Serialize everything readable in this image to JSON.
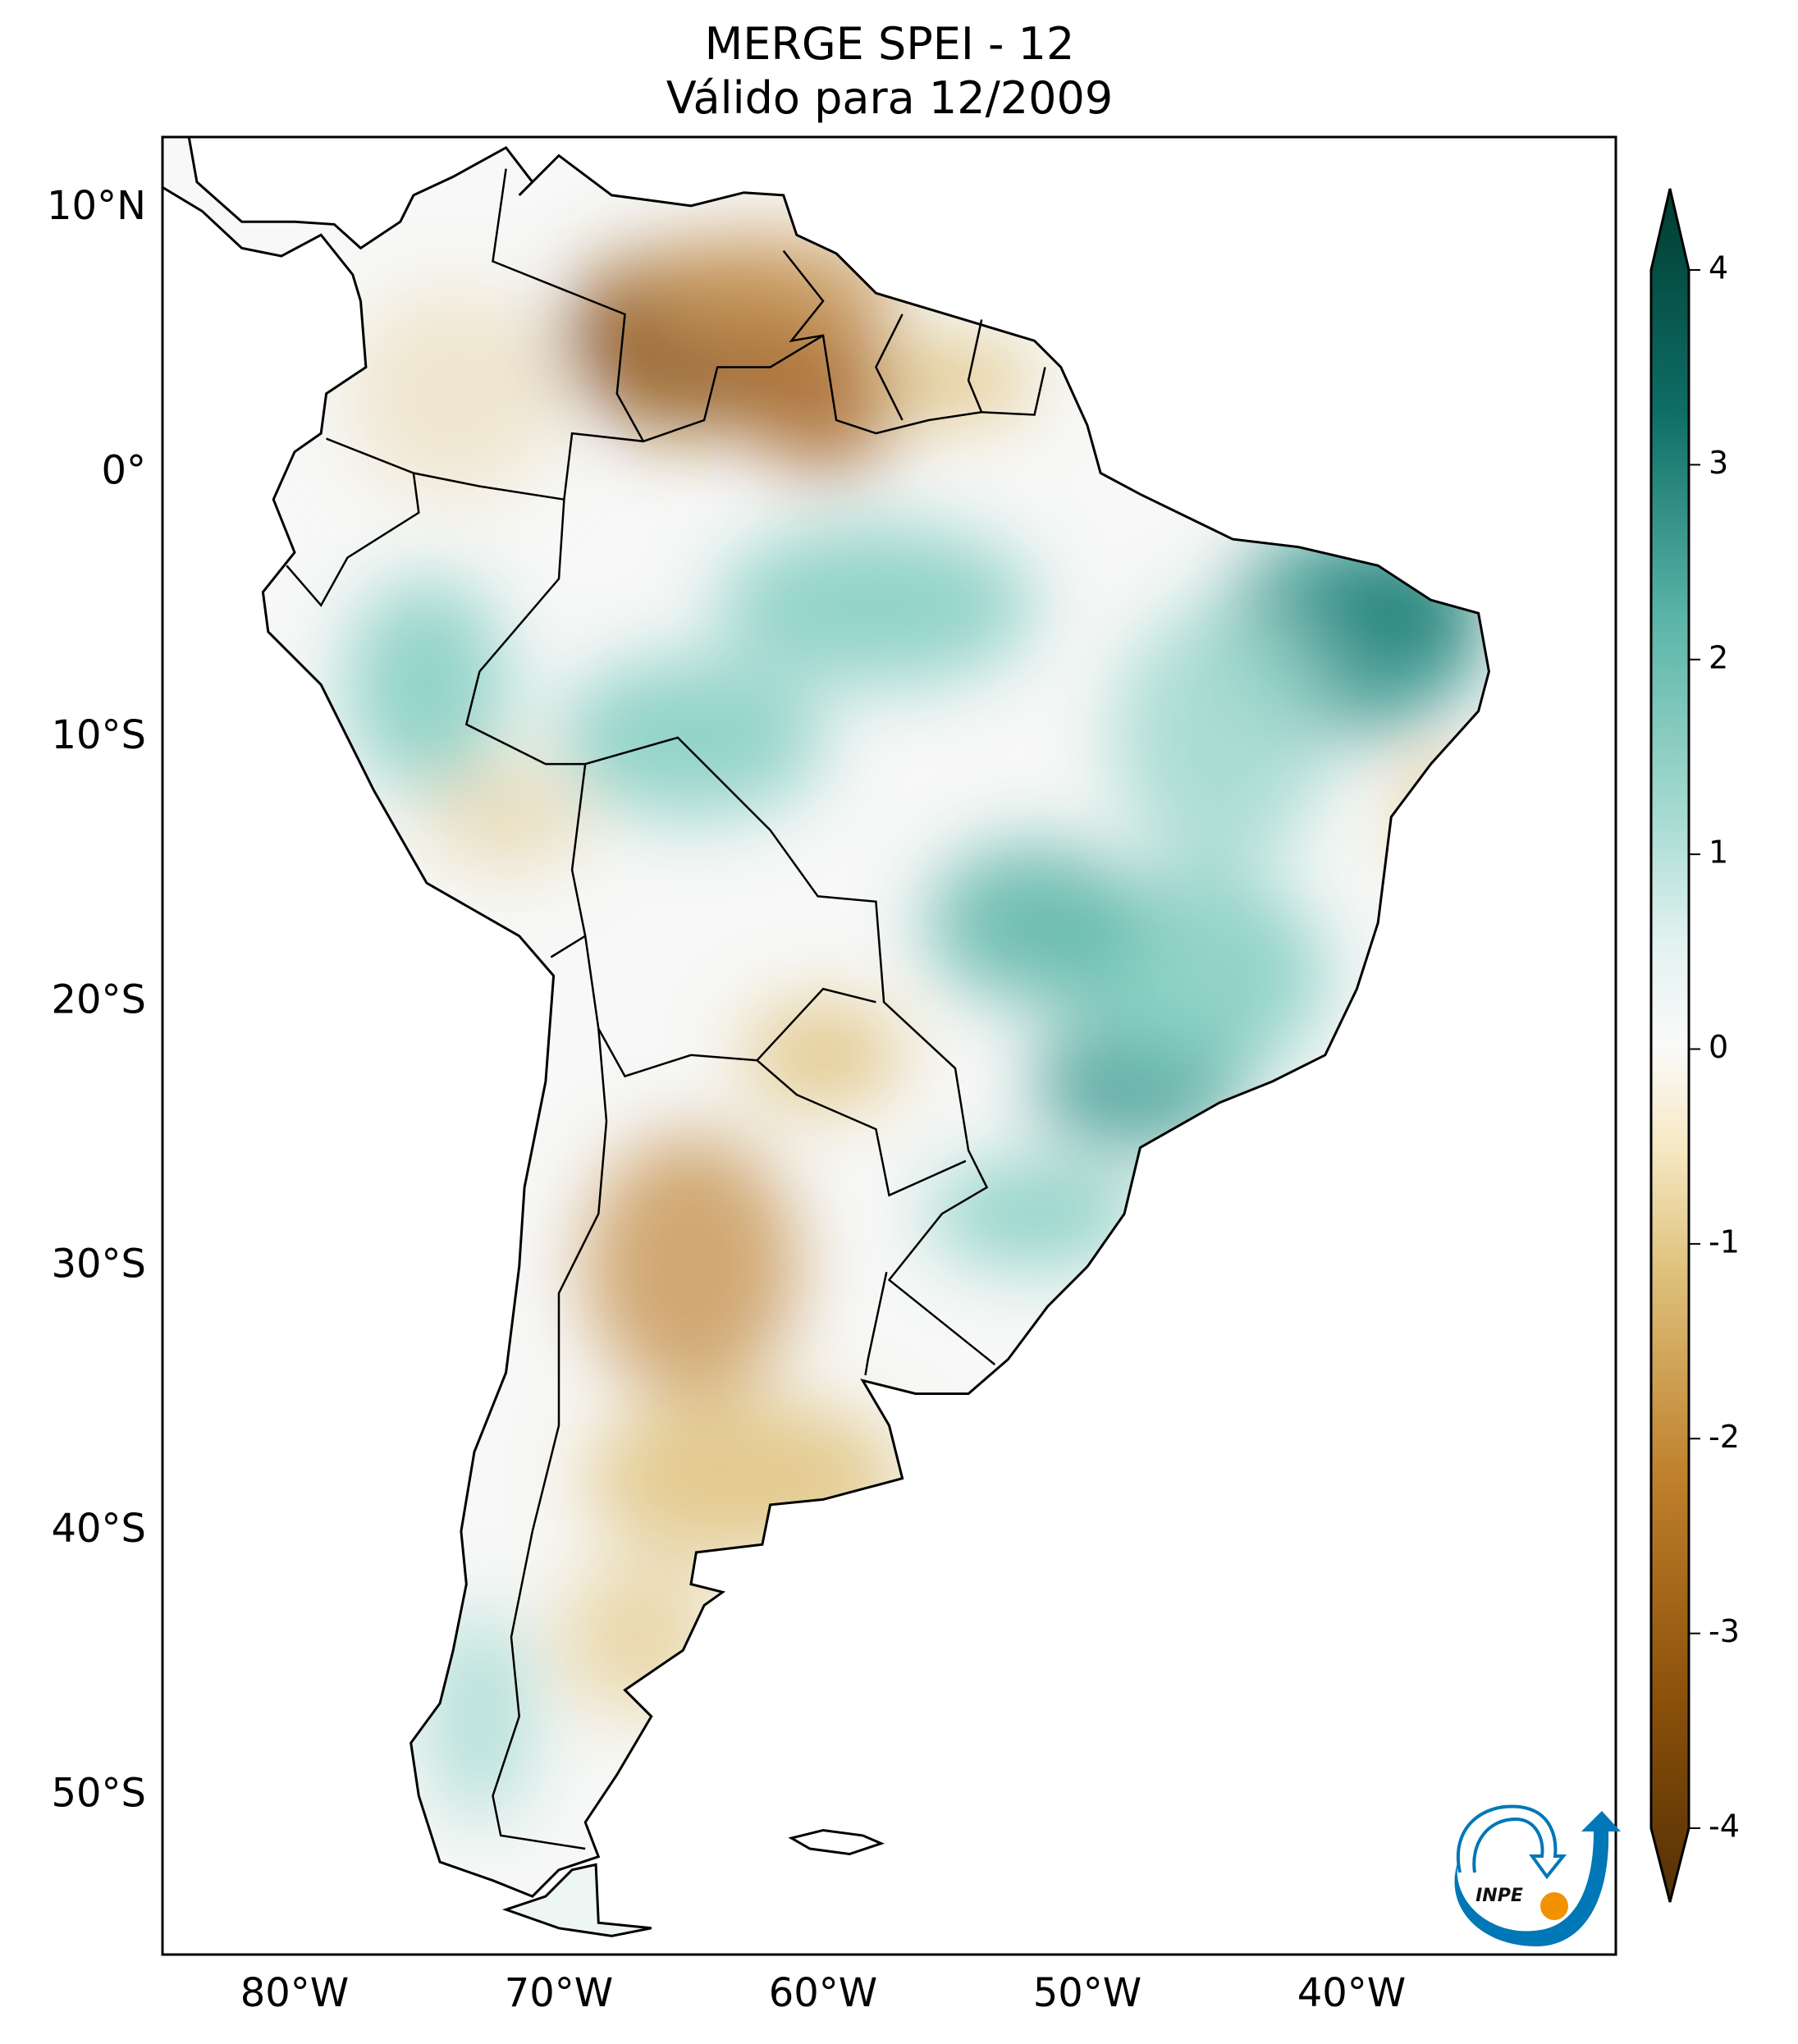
{
  "title": {
    "line1": "MERGE   SPEI - 12",
    "line2": "Válido para 12/2009"
  },
  "map": {
    "lon_range": [
      -85,
      -30
    ],
    "lat_range": [
      -56,
      12.7
    ],
    "lat_ticks": [
      {
        "value": 10,
        "label": "10°N"
      },
      {
        "value": 0,
        "label": "0°"
      },
      {
        "value": -10,
        "label": "10°S"
      },
      {
        "value": -20,
        "label": "20°S"
      },
      {
        "value": -30,
        "label": "30°S"
      },
      {
        "value": -40,
        "label": "40°S"
      },
      {
        "value": -50,
        "label": "50°S"
      }
    ],
    "lon_ticks": [
      {
        "value": -80,
        "label": "80°W"
      },
      {
        "value": -70,
        "label": "70°W"
      },
      {
        "value": -60,
        "label": "60°W"
      },
      {
        "value": -50,
        "label": "50°W"
      },
      {
        "value": -40,
        "label": "40°W"
      }
    ]
  },
  "colorbar": {
    "range": [
      -4,
      4
    ],
    "extend": "both",
    "ticks": [
      {
        "value": 4,
        "label": "4"
      },
      {
        "value": 3,
        "label": "3"
      },
      {
        "value": 2,
        "label": "2"
      },
      {
        "value": 1,
        "label": "1"
      },
      {
        "value": 0,
        "label": "0"
      },
      {
        "value": -1,
        "label": "-1"
      },
      {
        "value": -2,
        "label": "-2"
      },
      {
        "value": -3,
        "label": "-3"
      },
      {
        "value": -4,
        "label": "-4"
      }
    ],
    "colors": [
      "#543005",
      "#8c510a",
      "#bf812d",
      "#dfc27d",
      "#f6e8c3",
      "#f5f5f5",
      "#c7eae5",
      "#80cdc1",
      "#35978f",
      "#01665e",
      "#003c30"
    ]
  },
  "logo": {
    "text": "INPE",
    "blue": "#0077b6",
    "orange": "#f39200"
  }
}
